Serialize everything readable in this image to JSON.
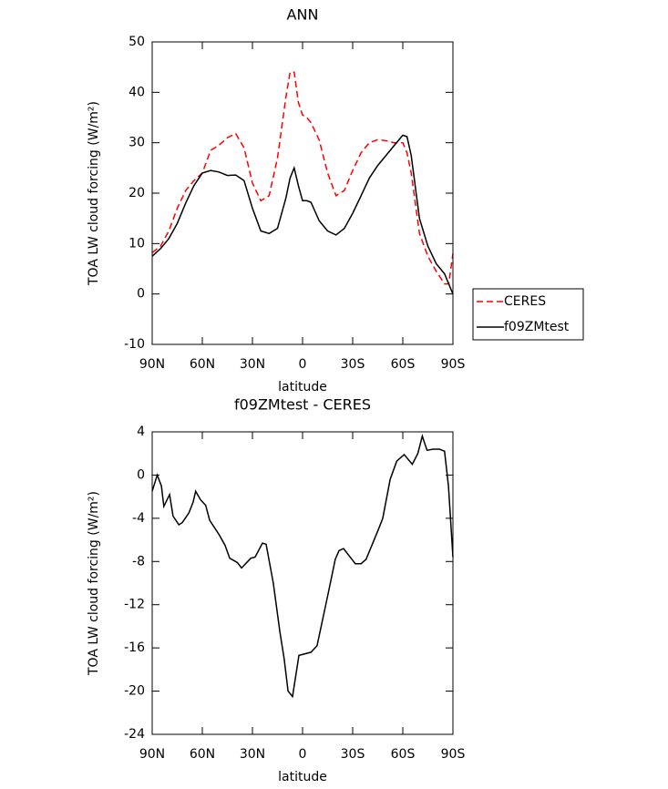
{
  "chart_data": [
    {
      "type": "line",
      "title": "ANN",
      "xlabel": "latitude",
      "ylabel": "TOA LW cloud forcing (W/m²)",
      "x": [
        90,
        85,
        80,
        75,
        70,
        65,
        60,
        55,
        50,
        45,
        40,
        35,
        30,
        25,
        20,
        15,
        10,
        7.5,
        5,
        2.5,
        0,
        -2.5,
        -5,
        -10,
        -15,
        -20,
        -25,
        -30,
        -35,
        -40,
        -45,
        -50,
        -55,
        -60,
        -62.5,
        -65,
        -70,
        -75,
        -80,
        -85,
        -87.5,
        -90
      ],
      "series": [
        {
          "name": "CERES",
          "color": "#ff0000",
          "dashed": true,
          "values": [
            8.2,
            9.5,
            12.5,
            17,
            20.5,
            22.5,
            24,
            28.5,
            29.5,
            31,
            31.8,
            29,
            22,
            18.5,
            19.5,
            27,
            39,
            44,
            44,
            38,
            35.5,
            35,
            34,
            30.5,
            24,
            19.5,
            20.5,
            24.5,
            28,
            30,
            30.6,
            30.4,
            30,
            30,
            28,
            24,
            12,
            7.5,
            4.5,
            2,
            2,
            8
          ]
        },
        {
          "name": "f09ZMtest",
          "color": "#000000",
          "dashed": false,
          "values": [
            7.5,
            9,
            11,
            14,
            18,
            21.5,
            24,
            24.5,
            24.2,
            23.5,
            23.6,
            22.5,
            17,
            12.5,
            12,
            13,
            19,
            23,
            25,
            21.5,
            18.5,
            18.5,
            18.2,
            14.5,
            12.5,
            11.7,
            13,
            16,
            19.5,
            23,
            25.5,
            27.5,
            29.5,
            31.5,
            31.2,
            27.5,
            15,
            9.5,
            6,
            4,
            2,
            0
          ]
        }
      ],
      "xlim": [
        90,
        -90
      ],
      "xticks": [
        {
          "value": 90,
          "label": "90N"
        },
        {
          "value": 60,
          "label": "60N"
        },
        {
          "value": 30,
          "label": "30N"
        },
        0,
        {
          "value": -30,
          "label": "30S"
        },
        {
          "value": -60,
          "label": "60S"
        },
        {
          "value": -90,
          "label": "90S"
        }
      ],
      "ylim": [
        -10,
        50
      ],
      "yticks": [
        -10,
        0,
        10,
        20,
        30,
        40,
        50
      ],
      "legend": "outside-right"
    },
    {
      "type": "line",
      "title": "f09ZMtest - CERES",
      "xlabel": "latitude",
      "ylabel": "TOA LW cloud forcing (W/m²)",
      "x": [
        90,
        87,
        84.5,
        83,
        79.6,
        77.5,
        74,
        72,
        68,
        65.5,
        64,
        61,
        58,
        55.6,
        50,
        46.4,
        43.6,
        39,
        36.5,
        31,
        28.4,
        24,
        21.8,
        17.5,
        13.6,
        11,
        8.7,
        6,
        2.2,
        -5,
        -8.7,
        -15.3,
        -19.6,
        -21.8,
        -24.5,
        -31.6,
        -35,
        -38,
        -45.5,
        -48,
        -52.4,
        -56.4,
        -60.8,
        -65.7,
        -69,
        -71.7,
        -74.5,
        -78.3,
        -82,
        -85,
        -87.3,
        -90
      ],
      "series": [
        {
          "color": "#000000",
          "dashed": false,
          "values": [
            -1.5,
            0,
            -1,
            -2.9,
            -1.8,
            -3.8,
            -4.6,
            -4.4,
            -3.5,
            -2.5,
            -1.5,
            -2.3,
            -2.8,
            -4.2,
            -5.5,
            -6.5,
            -7.7,
            -8.1,
            -8.6,
            -7.7,
            -7.6,
            -6.3,
            -6.4,
            -10,
            -14.5,
            -17,
            -20,
            -20.5,
            -16.7,
            -16.4,
            -15.8,
            -11,
            -7.8,
            -7,
            -6.8,
            -8.2,
            -8.2,
            -7.8,
            -5,
            -4,
            -0.4,
            1.3,
            1.9,
            1,
            2,
            3.6,
            2.3,
            2.4,
            2.4,
            2.2,
            -1,
            -7.6
          ]
        }
      ],
      "xlim": [
        90,
        -90
      ],
      "xticks": [
        {
          "value": 90,
          "label": "90N"
        },
        {
          "value": 60,
          "label": "60N"
        },
        {
          "value": 30,
          "label": "30N"
        },
        0,
        {
          "value": -30,
          "label": "30S"
        },
        {
          "value": -60,
          "label": "60S"
        },
        {
          "value": -90,
          "label": "90S"
        }
      ],
      "ylim": [
        -24,
        4
      ],
      "yticks": [
        -24,
        -20,
        -16,
        -12,
        -8,
        -4,
        0,
        4
      ]
    }
  ]
}
